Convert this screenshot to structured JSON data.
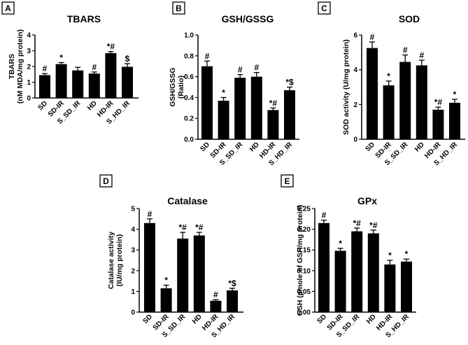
{
  "chart_data": [
    {
      "id": "A",
      "type": "bar",
      "title": "TBARS",
      "ylabel": [
        "TBARS",
        "(nM MDA/mg protein)"
      ],
      "categories": [
        "SD",
        "SD-IR",
        "S_SD_IR",
        "HD",
        "HD-IR",
        "S_HD_IR"
      ],
      "values": [
        1.45,
        2.15,
        1.75,
        1.55,
        2.85,
        1.98
      ],
      "errors": [
        0.1,
        0.1,
        0.2,
        0.1,
        0.1,
        0.2
      ],
      "annotations": [
        "#",
        "*",
        "",
        "#",
        "*#",
        "$"
      ],
      "ylim": [
        0,
        4
      ],
      "yticks": [
        0,
        1,
        2,
        3,
        4
      ],
      "ytick_labels": [
        "0",
        "1",
        "2",
        "3",
        "4"
      ]
    },
    {
      "id": "B",
      "type": "bar",
      "title": "GSH/GSSG",
      "ylabel": [
        "GSH/GSSG",
        "(Ratio)"
      ],
      "categories": [
        "SD",
        "SD-IR",
        "S_SD_IR",
        "HD",
        "HD-IR",
        "S_HD_IR"
      ],
      "values": [
        0.7,
        0.37,
        0.59,
        0.6,
        0.28,
        0.47
      ],
      "errors": [
        0.05,
        0.03,
        0.03,
        0.04,
        0.02,
        0.03
      ],
      "annotations": [
        "#",
        "*",
        "#",
        "#",
        "*#",
        "*$"
      ],
      "ylim": [
        0,
        1.0
      ],
      "yticks": [
        0,
        0.2,
        0.4,
        0.6,
        0.8,
        1.0
      ],
      "ytick_labels": [
        "0.0",
        "0.2",
        "0.4",
        "0.6",
        "0.8",
        "1.0"
      ]
    },
    {
      "id": "C",
      "type": "bar",
      "title": "SOD",
      "ylabel": [
        "SOD activity (U/mg protein)"
      ],
      "categories": [
        "SD",
        "SD-IR",
        "S_SD_IR",
        "HD",
        "HD-IR",
        "S_HD_IR"
      ],
      "values": [
        5.25,
        3.1,
        4.45,
        4.25,
        1.7,
        2.1
      ],
      "errors": [
        0.35,
        0.25,
        0.4,
        0.3,
        0.15,
        0.2
      ],
      "annotations": [
        "#",
        "*",
        "#",
        "#",
        "*#",
        "*"
      ],
      "ylim": [
        0,
        6
      ],
      "yticks": [
        0,
        2,
        4,
        6
      ],
      "ytick_labels": [
        "0",
        "2",
        "4",
        "6"
      ]
    },
    {
      "id": "D",
      "type": "bar",
      "title": "Catalase",
      "ylabel": [
        "Catalase activity",
        "(IU/mg protein)"
      ],
      "categories": [
        "SD",
        "SD-IR",
        "S_SD_IR",
        "HD",
        "HD-IR",
        "S_HD_IR"
      ],
      "values": [
        4.3,
        1.15,
        3.55,
        3.7,
        0.55,
        1.05
      ],
      "errors": [
        0.2,
        0.15,
        0.3,
        0.15,
        0.05,
        0.1
      ],
      "annotations": [
        "#",
        "*",
        "*#",
        "*#",
        "#",
        "*$"
      ],
      "ylim": [
        0,
        5
      ],
      "yticks": [
        0,
        1,
        2,
        3,
        4,
        5
      ],
      "ytick_labels": [
        "0",
        "1",
        "2",
        "3",
        "4",
        "5"
      ]
    },
    {
      "id": "E",
      "type": "bar",
      "title": "GPx",
      "ylabel": [
        "GSH  (µmole of GSH/mg protein)"
      ],
      "categories": [
        "SD",
        "SD-IR",
        "S_SD_IR",
        "HD",
        "HD-IR",
        "S_HD_IR"
      ],
      "values": [
        0.215,
        0.148,
        0.195,
        0.19,
        0.115,
        0.122
      ],
      "errors": [
        0.007,
        0.006,
        0.008,
        0.008,
        0.01,
        0.006
      ],
      "annotations": [
        "#",
        "*",
        "*#",
        "*#",
        "*",
        "*"
      ],
      "ylim": [
        0,
        0.25
      ],
      "yticks": [
        0,
        0.05,
        0.1,
        0.15,
        0.2,
        0.25
      ],
      "ytick_labels": [
        "0.00",
        "0.05",
        "0.10",
        "0.15",
        "0.20",
        "0.25"
      ]
    }
  ]
}
